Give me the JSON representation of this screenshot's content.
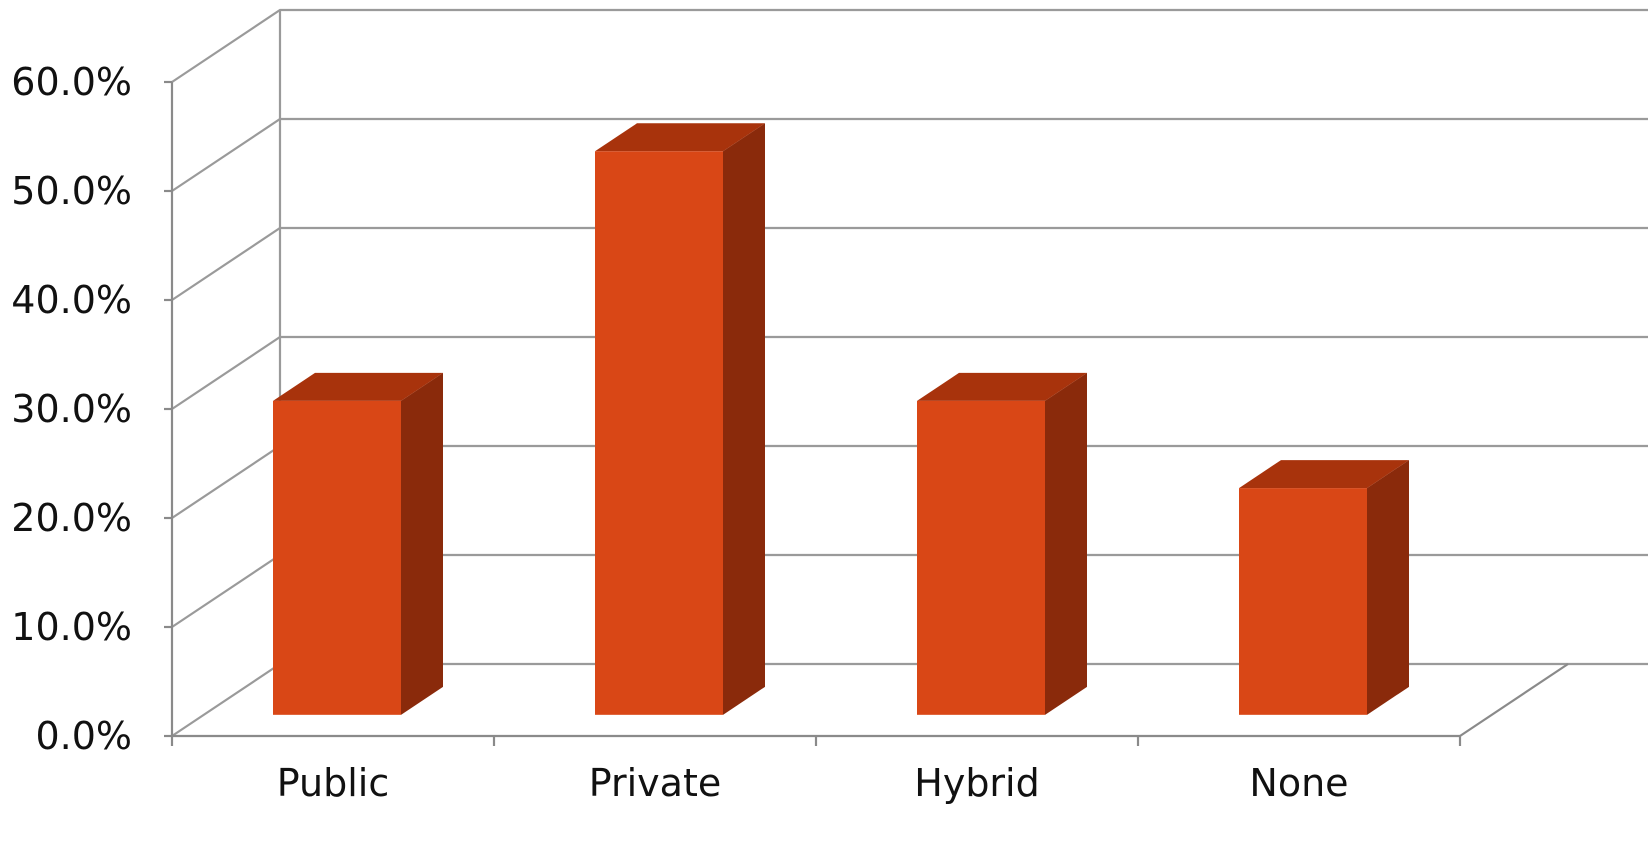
{
  "chart_data": {
    "type": "bar",
    "style": "3d-column",
    "categories": [
      "Public",
      "Private",
      "Hybrid",
      "None"
    ],
    "values": [
      28.8,
      51.7,
      28.8,
      20.8
    ],
    "value_format": "percent",
    "ylim": [
      0,
      60
    ],
    "y_ticks": [
      {
        "value": 0,
        "label": "0.0%"
      },
      {
        "value": 10,
        "label": "10.0%"
      },
      {
        "value": 20,
        "label": "20.0%"
      },
      {
        "value": 30,
        "label": "30.0%"
      },
      {
        "value": 40,
        "label": "40.0%"
      },
      {
        "value": 50,
        "label": "50.0%"
      },
      {
        "value": 60,
        "label": "60.0%"
      }
    ],
    "title": "",
    "xlabel": "",
    "ylabel": "",
    "grid": true,
    "legend": "none",
    "colors": {
      "bar_front": "#d94716",
      "bar_top": "#a8330c",
      "bar_side": "#8a2a0b",
      "grid": "#9a9a9a"
    }
  }
}
